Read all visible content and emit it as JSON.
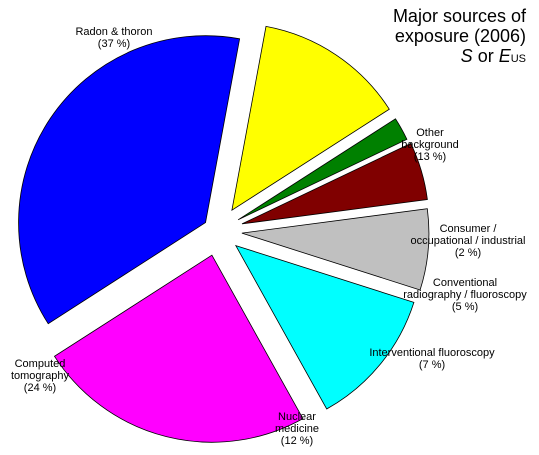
{
  "chart_data": {
    "type": "pie",
    "title": {
      "line1": "Major sources of",
      "line2": "exposure (2006)",
      "line3_s": "S",
      "line3_or": " or ",
      "line3_e": "E",
      "line3_sub": "US"
    },
    "style": "exploded",
    "slices": [
      {
        "label_lines": [
          "Radon & thoron"
        ],
        "pct_text": "(37 %)",
        "value": 37,
        "color": "#0000FF"
      },
      {
        "label_lines": [
          "Other",
          "background"
        ],
        "pct_text": "(13 %)",
        "value": 13,
        "color": "#FFFF00"
      },
      {
        "label_lines": [
          "Consumer /",
          "occupational / industrial"
        ],
        "pct_text": "(2 %)",
        "value": 2,
        "color": "#008000"
      },
      {
        "label_lines": [
          "Conventional",
          "radiography / fluoroscopy"
        ],
        "pct_text": "(5 %)",
        "value": 5,
        "color": "#800000"
      },
      {
        "label_lines": [
          "Interventional fluoroscopy"
        ],
        "pct_text": "(7 %)",
        "value": 7,
        "color": "#C0C0C0"
      },
      {
        "label_lines": [
          "Nuclear",
          "medicine"
        ],
        "pct_text": "(12 %)",
        "value": 12,
        "color": "#00FFFF"
      },
      {
        "label_lines": [
          "Computed",
          "tomography"
        ],
        "pct_text": "(24 %)",
        "value": 24,
        "color": "#FF00FF"
      }
    ]
  }
}
